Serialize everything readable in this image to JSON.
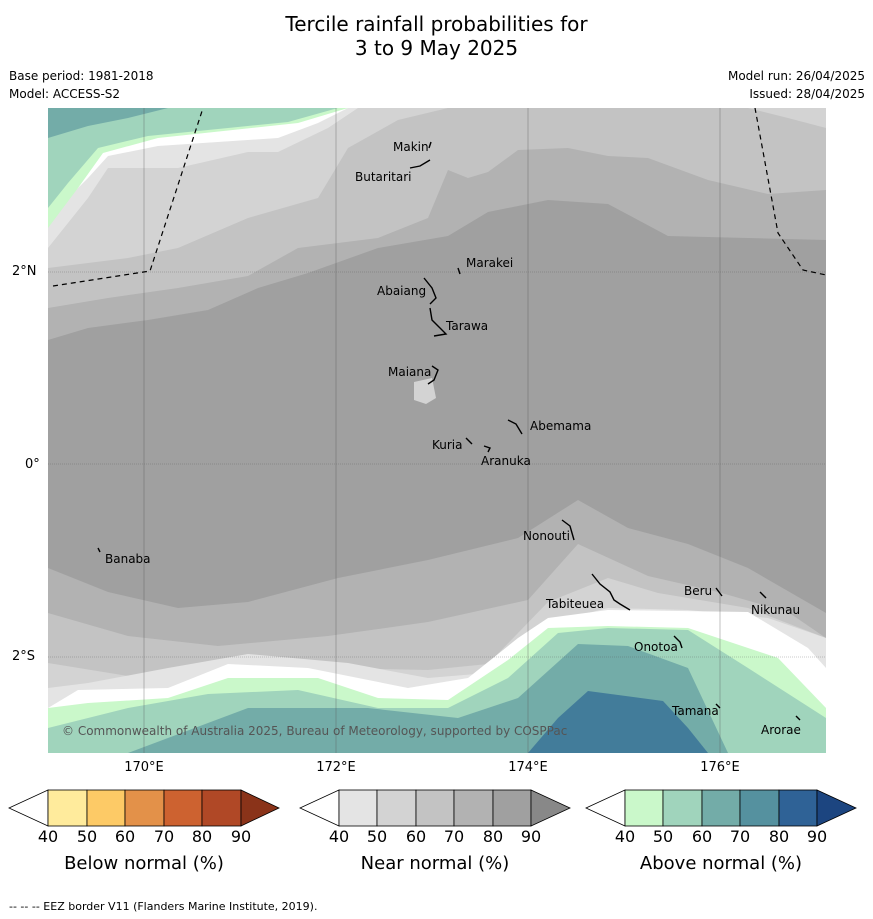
{
  "title_line1": "Tercile rainfall probabilities for",
  "title_line2": "3 to 9 May 2025",
  "meta": {
    "base_period": "Base period: 1981-2018",
    "model": "Model: ACCESS-S2",
    "model_run": "Model run: 26/04/2025",
    "issued": "Issued: 28/04/2025"
  },
  "map": {
    "lat_labels": [
      "2°N",
      "0°",
      "2°S"
    ],
    "lon_labels": [
      "170°E",
      "172°E",
      "174°E",
      "176°E"
    ],
    "islands": [
      "Makin",
      "Butaritari",
      "Marakei",
      "Abaiang",
      "Tarawa",
      "Maiana",
      "Abemama",
      "Kuria",
      "Aranuka",
      "Nonouti",
      "Banaba",
      "Tabiteuea",
      "Beru",
      "Nikunau",
      "Onotoa",
      "Tamana",
      "Arorae"
    ],
    "copyright": "© Commonwealth of Australia 2025, Bureau of Meteorology, supported by COSPPac"
  },
  "colorbars": [
    {
      "label": "Below normal (%)",
      "ticks": [
        "40",
        "50",
        "60",
        "70",
        "80",
        "90"
      ],
      "colors": [
        "#ffffff",
        "#ffeb9c",
        "#fdca66",
        "#e39149",
        "#cd6230",
        "#b04826",
        "#8a3319"
      ]
    },
    {
      "label": "Near normal (%)",
      "ticks": [
        "40",
        "50",
        "60",
        "70",
        "80",
        "90"
      ],
      "colors": [
        "#ffffff",
        "#e4e4e4",
        "#d3d3d3",
        "#c3c3c3",
        "#b2b2b2",
        "#a0a0a0",
        "#888888"
      ]
    },
    {
      "label": "Above normal (%)",
      "ticks": [
        "40",
        "50",
        "60",
        "70",
        "80",
        "90"
      ],
      "colors": [
        "#ffffff",
        "#caf8ca",
        "#a0d4bc",
        "#73aca8",
        "#55919f",
        "#2f6296",
        "#1c4580"
      ]
    }
  ],
  "eez_note": "-- -- -- EEZ border V11 (Flanders Marine Institute, 2019)."
}
